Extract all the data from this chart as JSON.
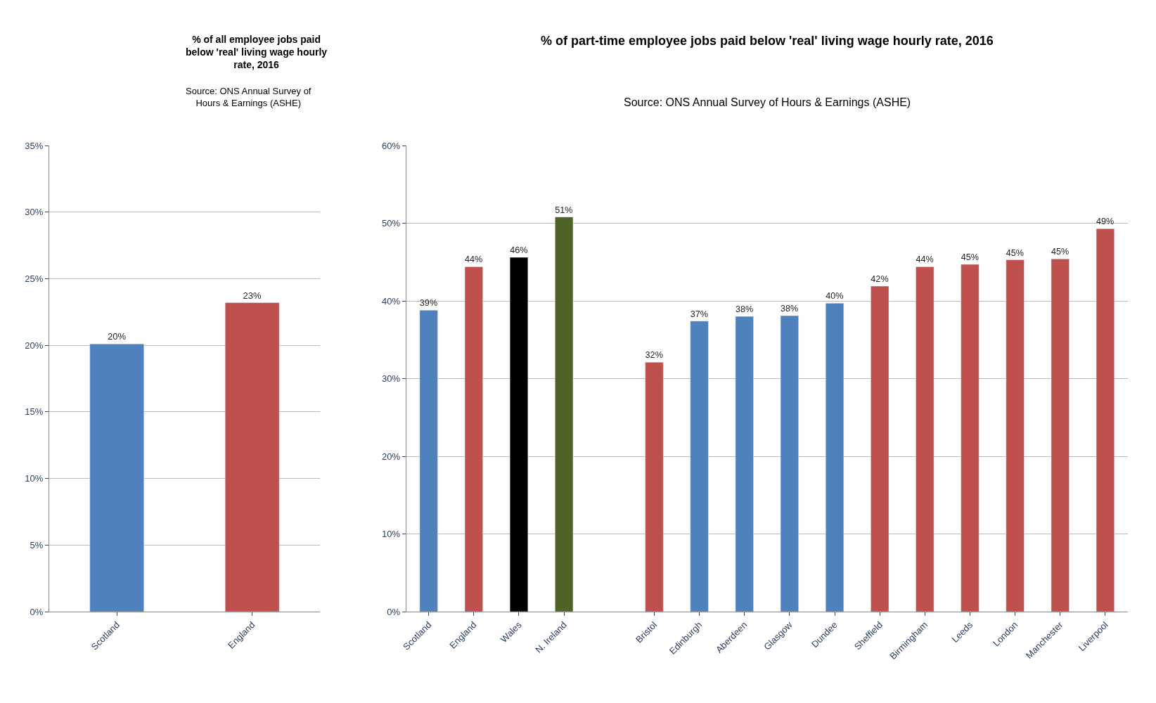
{
  "chart_data": [
    {
      "type": "bar",
      "title": "% of all employee jobs paid below 'real' living wage hourly rate, 2016",
      "subtitle": "Source: ONS Annual Survey of Hours & Earnings (ASHE)",
      "categories": [
        "Scotland",
        "England"
      ],
      "values": [
        20.1,
        23.2
      ],
      "colors": [
        "#4f81bd",
        "#c0504d"
      ],
      "value_labels": [
        "20%",
        "23%"
      ],
      "ylim": [
        0,
        35
      ],
      "yticks": [
        {
          "value": 0,
          "label": "0%"
        },
        {
          "value": 5,
          "label": "5%"
        },
        {
          "value": 10,
          "label": "10%"
        },
        {
          "value": 15,
          "label": "15%"
        },
        {
          "value": 20,
          "label": "20%"
        },
        {
          "value": 25,
          "label": "25%"
        },
        {
          "value": 30,
          "label": "30%"
        },
        {
          "value": 35,
          "label": "35%"
        }
      ],
      "grid": "y",
      "legend": false
    },
    {
      "type": "bar",
      "title": "% of part-time employee jobs paid below 'real' living wage hourly rate, 2016",
      "subtitle": "Source: ONS Annual Survey of Hours & Earnings (ASHE)",
      "categories": [
        "Scotland",
        "England",
        "Wales",
        "N. Ireland",
        null,
        "Bristol",
        "Edinburgh",
        "Aberdeen",
        "Glasgow",
        "Dundee",
        "Sheffield",
        "Birmingham",
        "Leeds",
        "London",
        "Manchester",
        "Liverpool"
      ],
      "values": [
        38.8,
        44.4,
        45.6,
        50.8,
        null,
        32.1,
        37.4,
        38.0,
        38.1,
        39.7,
        41.9,
        44.4,
        44.7,
        45.3,
        45.4,
        49.3
      ],
      "colors": [
        "#4f81bd",
        "#c0504d",
        "#000000",
        "#4f6228",
        null,
        "#c0504d",
        "#4f81bd",
        "#4f81bd",
        "#4f81bd",
        "#4f81bd",
        "#c0504d",
        "#c0504d",
        "#c0504d",
        "#c0504d",
        "#c0504d",
        "#c0504d"
      ],
      "value_labels": [
        "39%",
        "44%",
        "46%",
        "51%",
        null,
        "32%",
        "37%",
        "38%",
        "38%",
        "40%",
        "42%",
        "44%",
        "45%",
        "45%",
        "45%",
        "49%"
      ],
      "ylim": [
        0,
        60
      ],
      "yticks": [
        {
          "value": 0,
          "label": "0%"
        },
        {
          "value": 10,
          "label": "10%"
        },
        {
          "value": 20,
          "label": "20%"
        },
        {
          "value": 30,
          "label": "30%"
        },
        {
          "value": 40,
          "label": "40%"
        },
        {
          "value": 50,
          "label": "50%"
        },
        {
          "value": 60,
          "label": "60%"
        }
      ],
      "grid": "y",
      "legend": false
    }
  ]
}
